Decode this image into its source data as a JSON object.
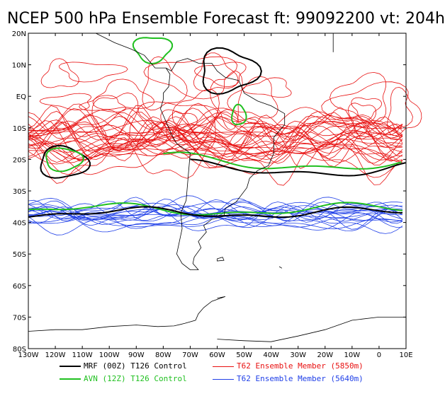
{
  "title": "NCEP 500 hPa Ensemble Forecast  ft: 99092200 vt: 204h",
  "map": {
    "lon_range": [
      -130,
      10
    ],
    "lat_range": [
      -80,
      20
    ],
    "lat_labels": [
      "20N",
      "10N",
      "EQ",
      "10S",
      "20S",
      "30S",
      "40S",
      "50S",
      "60S",
      "70S",
      "80S"
    ],
    "lon_labels": [
      "130W",
      "120W",
      "110W",
      "100W",
      "90W",
      "80W",
      "70W",
      "60W",
      "50W",
      "40W",
      "30W",
      "20W",
      "10W",
      "0",
      "10E"
    ]
  },
  "legend": [
    {
      "label": "MRF (00Z) T126 Control",
      "color": "#000000"
    },
    {
      "label": "T62 Ensemble Member (5850m)",
      "color": "#e81010"
    },
    {
      "label": "AVN (12Z) T126 Control",
      "color": "#20c020"
    },
    {
      "label": "T62 Ensemble Member (5640m)",
      "color": "#2040e8"
    }
  ]
}
